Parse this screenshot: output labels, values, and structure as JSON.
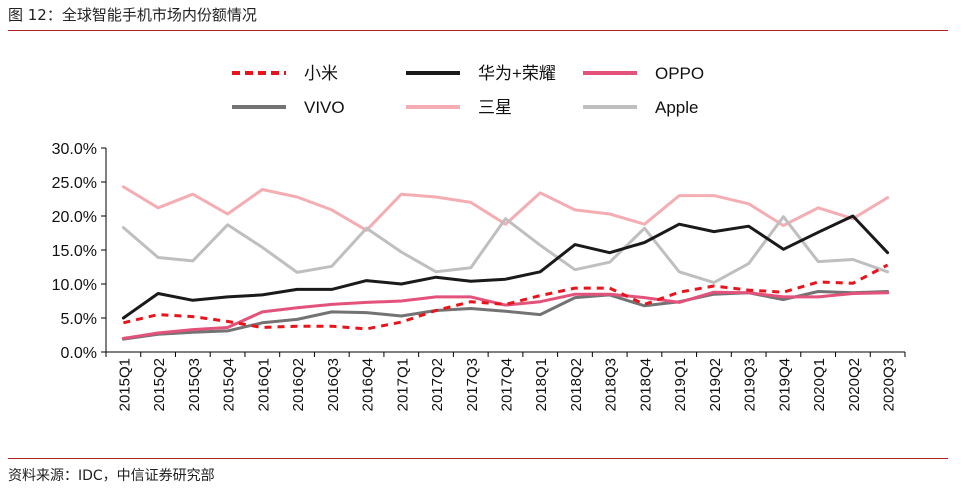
{
  "figure": {
    "title": "图 12：全球智能手机市场内份额情况",
    "source": "资料来源：IDC，中信证券研究部"
  },
  "chart_data": {
    "type": "line",
    "title": "",
    "xlabel": "",
    "ylabel": "",
    "ylim": [
      0,
      30
    ],
    "y_ticks": [
      "0.0%",
      "5.0%",
      "10.0%",
      "15.0%",
      "20.0%",
      "25.0%",
      "30.0%"
    ],
    "grid": false,
    "legend_position": "top",
    "categories": [
      "2015Q1",
      "2015Q2",
      "2015Q3",
      "2015Q4",
      "2016Q1",
      "2016Q2",
      "2016Q3",
      "2016Q4",
      "2017Q1",
      "2017Q2",
      "2017Q3",
      "2017Q4",
      "2018Q1",
      "2018Q2",
      "2018Q3",
      "2018Q4",
      "2019Q1",
      "2019Q2",
      "2019Q3",
      "2019Q4",
      "2020Q1",
      "2020Q2",
      "2020Q3"
    ],
    "series": [
      {
        "name": "小米",
        "color": "#e8141b",
        "style": "dashed",
        "values": [
          4.3,
          5.5,
          5.2,
          4.5,
          3.6,
          3.8,
          3.8,
          3.4,
          4.4,
          6.1,
          7.4,
          7.0,
          8.3,
          9.4,
          9.4,
          7.0,
          8.8,
          9.7,
          9.1,
          8.8,
          10.3,
          10.1,
          12.8
        ]
      },
      {
        "name": "华为+荣耀",
        "color": "#1a1a1a",
        "style": "solid",
        "values": [
          5.0,
          8.6,
          7.6,
          8.1,
          8.4,
          9.2,
          9.2,
          10.5,
          10.0,
          11.0,
          10.4,
          10.7,
          11.8,
          15.8,
          14.6,
          16.1,
          18.8,
          17.7,
          18.5,
          15.1,
          17.6,
          20.0,
          14.6
        ]
      },
      {
        "name": "OPPO",
        "color": "#e2527a",
        "style": "solid",
        "values": [
          2.0,
          2.8,
          3.3,
          3.6,
          5.9,
          6.5,
          7.0,
          7.3,
          7.5,
          8.1,
          8.1,
          6.9,
          7.4,
          8.5,
          8.5,
          8.0,
          7.3,
          8.8,
          8.7,
          8.1,
          8.1,
          8.6,
          8.7
        ]
      },
      {
        "name": "VIVO",
        "color": "#737373",
        "style": "solid",
        "values": [
          1.9,
          2.6,
          2.9,
          3.1,
          4.3,
          4.8,
          5.9,
          5.8,
          5.3,
          6.1,
          6.4,
          6.0,
          5.5,
          8.0,
          8.4,
          6.8,
          7.4,
          8.5,
          8.7,
          7.7,
          8.9,
          8.7,
          8.9
        ]
      },
      {
        "name": "三星",
        "color": "#f4aeb3",
        "style": "solid",
        "values": [
          24.3,
          21.2,
          23.2,
          20.3,
          23.9,
          22.8,
          20.9,
          17.9,
          23.2,
          22.8,
          22.0,
          18.8,
          23.4,
          20.9,
          20.3,
          18.8,
          23.0,
          23.0,
          21.8,
          18.6,
          21.2,
          19.6,
          22.7
        ]
      },
      {
        "name": "Apple",
        "color": "#bfbfbf",
        "style": "solid",
        "values": [
          18.3,
          13.9,
          13.4,
          18.7,
          15.4,
          11.7,
          12.6,
          18.2,
          14.7,
          11.8,
          12.4,
          19.6,
          15.7,
          12.1,
          13.2,
          18.2,
          11.8,
          10.2,
          13.0,
          19.9,
          13.3,
          13.6,
          11.8
        ]
      }
    ]
  }
}
